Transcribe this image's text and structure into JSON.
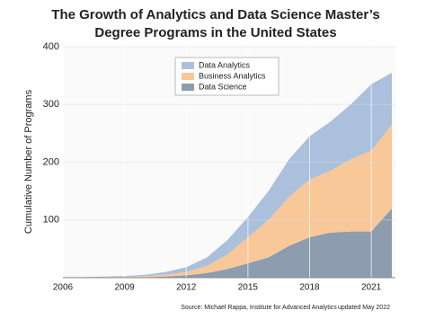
{
  "chart_data": {
    "type": "stacked-area",
    "title": [
      "The Growth of Analytics and Data Science Master’s",
      "Degree Programs in the United States"
    ],
    "y_label": "Cumulative Number of Programs",
    "source": "Source: Michael Rappa, Institute for Advanced Analytics",
    "note": "updated May 2022",
    "x": [
      2006,
      2007,
      2008,
      2009,
      2010,
      2011,
      2012,
      2013,
      2014,
      2015,
      2016,
      2017,
      2018,
      2019,
      2020,
      2021,
      2022
    ],
    "series": [
      {
        "name": "Data Science",
        "color": "#8d9cae",
        "values": [
          0,
          0,
          0,
          1,
          1,
          2,
          4,
          8,
          15,
          25,
          35,
          55,
          70,
          78,
          80,
          80,
          120
        ]
      },
      {
        "name": "Business Analytics",
        "color": "#f8c899",
        "values": [
          0,
          0,
          1,
          1,
          2,
          3,
          6,
          12,
          25,
          45,
          65,
          85,
          100,
          107,
          125,
          140,
          145
        ]
      },
      {
        "name": "Data Analytics",
        "color": "#aac0dc",
        "values": [
          1,
          1,
          1,
          1,
          2,
          5,
          8,
          15,
          25,
          35,
          50,
          65,
          75,
          85,
          95,
          115,
          90
        ]
      }
    ],
    "xlim": [
      2006,
      2022
    ],
    "ylim": [
      0,
      400
    ],
    "xticks": [
      2006,
      2009,
      2012,
      2015,
      2018,
      2021
    ],
    "yticks": [
      100,
      200,
      300,
      400
    ],
    "grid": true
  }
}
